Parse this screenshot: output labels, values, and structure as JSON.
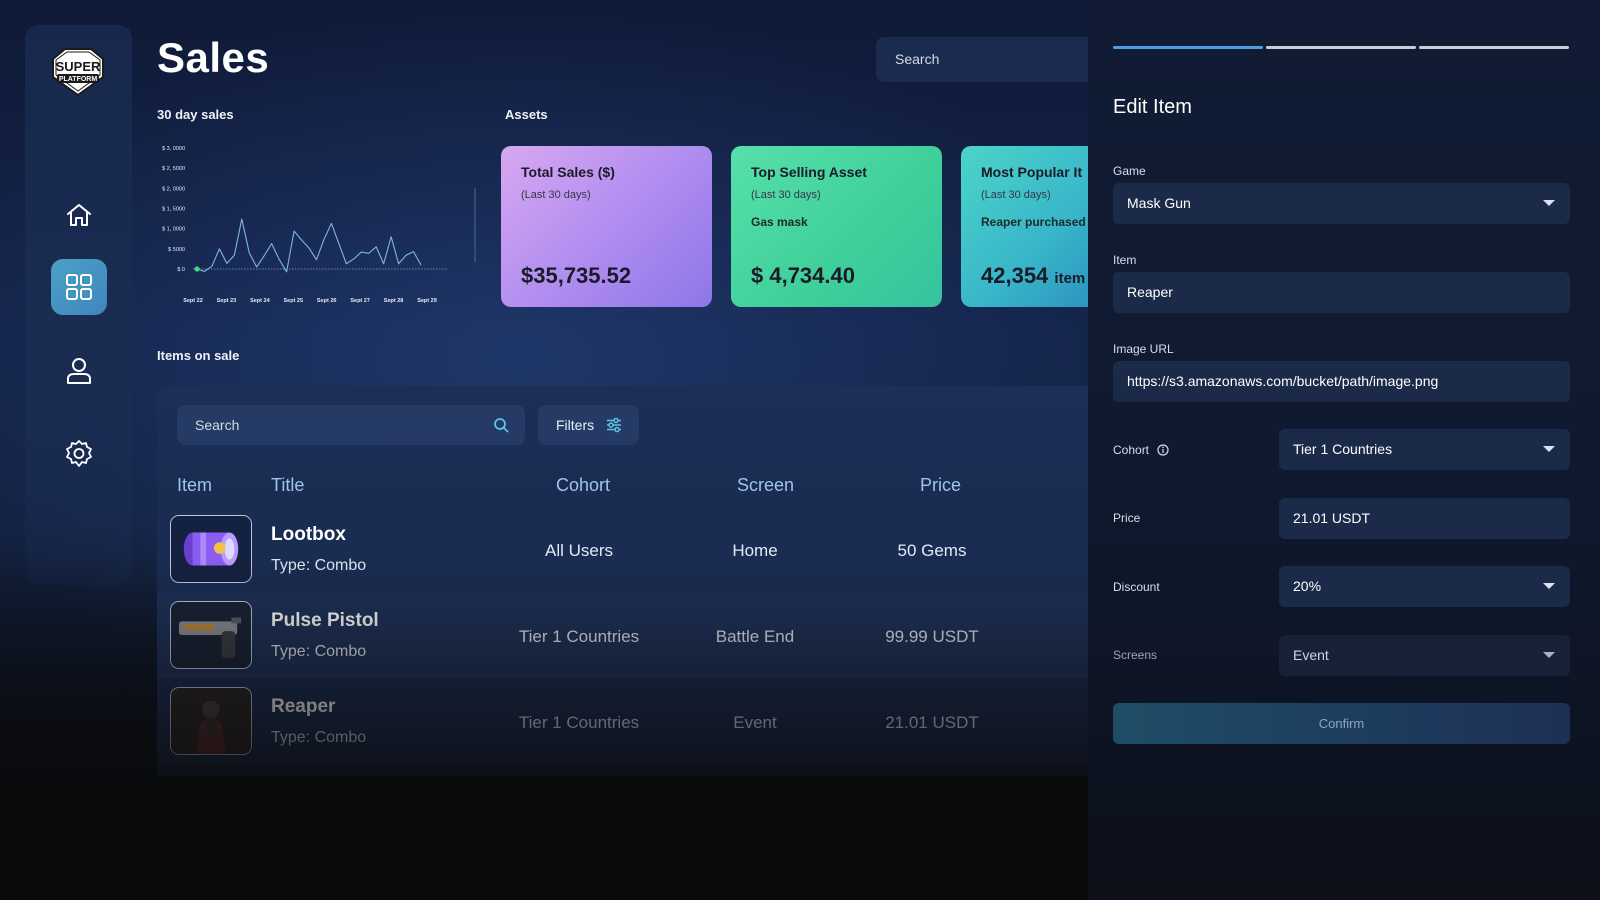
{
  "app": {
    "title": "Sales",
    "logo_text": {
      "line1": "SUPER",
      "line2": "PLATFORM"
    }
  },
  "colors": {
    "accent": "#4aa2c7",
    "panel": "#1a2c52",
    "card_total_sales": "#b28ef0",
    "card_top_asset": "#3fcf9a",
    "card_popular": "#39b7c9"
  },
  "sidebar": {
    "items": [
      {
        "icon": "home-icon",
        "active": false
      },
      {
        "icon": "grid-icon",
        "active": true
      },
      {
        "icon": "user-icon",
        "active": false
      },
      {
        "icon": "gear-icon",
        "active": false
      }
    ]
  },
  "header": {
    "search_placeholder": "Search"
  },
  "sales_chart": {
    "label": "30 day sales"
  },
  "chart_data": {
    "type": "line",
    "title": "30 day sales",
    "xlabel": "",
    "ylabel": "",
    "y_tick_labels": [
      "$ 3, 0000",
      "$ 2, 5000",
      "$ 2, 0000",
      "$ 1, 5000",
      "$ 1, 0000",
      "$ 5000",
      "$ 0"
    ],
    "x_tick_labels": [
      "Sept 22",
      "Sept 23",
      "Sept 24",
      "Sept 25",
      "Sept 26",
      "Sept 27",
      "Sept 28",
      "Sept 29"
    ],
    "ylim": [
      0,
      30000
    ],
    "series": [
      {
        "values": [
          0,
          -600,
          700,
          5000,
          1400,
          3400,
          12400,
          4000,
          500,
          3300,
          6300,
          2400,
          -700,
          9400,
          7200,
          5200,
          2300,
          7300,
          11300,
          6300,
          1300,
          2500,
          4200,
          3900,
          5500,
          1300,
          8000,
          1300,
          3400,
          4300,
          1000
        ]
      }
    ],
    "grid": false,
    "legend": "none"
  },
  "assets": {
    "label": "Assets",
    "cards": [
      {
        "title": "Total Sales ($)",
        "subtitle": "(Last 30 days)",
        "extra": "",
        "value": "$35,735.52",
        "unit": ""
      },
      {
        "title": "Top Selling Asset",
        "subtitle": "(Last 30 days)",
        "extra": "Gas mask",
        "value": "$ 4,734.40",
        "unit": ""
      },
      {
        "title": "Most Popular It",
        "subtitle": "(Last 30 days)",
        "extra": "Reaper purchased",
        "value": "42,354",
        "unit": "item"
      }
    ]
  },
  "items_on_sale": {
    "label": "Items on sale",
    "search_placeholder": "Search",
    "filters_label": "Filters",
    "columns": [
      "Item",
      "Title",
      "Cohort",
      "Screen",
      "Price"
    ],
    "rows": [
      {
        "title": "Lootbox",
        "type": "Type: Combo",
        "cohort": "All Users",
        "screen": "Home",
        "price": "50 Gems",
        "thumb": "lootbox"
      },
      {
        "title": "Pulse Pistol",
        "type": "Type: Combo",
        "cohort": "Tier 1 Countries",
        "screen": "Battle End",
        "price": "99.99 USDT",
        "thumb": "pistol"
      },
      {
        "title": "Reaper",
        "type": "Type: Combo",
        "cohort": "Tier 1 Countries",
        "screen": "Event",
        "price": "21.01 USDT",
        "thumb": "reaper"
      }
    ]
  },
  "edit_item": {
    "title": "Edit Item",
    "progress": {
      "steps": 3,
      "current": 1
    },
    "fields": {
      "game": {
        "label": "Game",
        "value": "Mask Gun"
      },
      "item": {
        "label": "Item",
        "value": "Reaper"
      },
      "image_url": {
        "label": "Image URL",
        "value": "https://s3.amazonaws.com/bucket/path/image.png"
      },
      "cohort": {
        "label": "Cohort",
        "value": "Tier 1 Countries"
      },
      "price": {
        "label": "Price",
        "value": "21.01 USDT"
      },
      "discount": {
        "label": "Discount",
        "value": "20%"
      },
      "screens": {
        "label": "Screens",
        "value": "Event"
      }
    },
    "confirm_label": "Confirm"
  }
}
